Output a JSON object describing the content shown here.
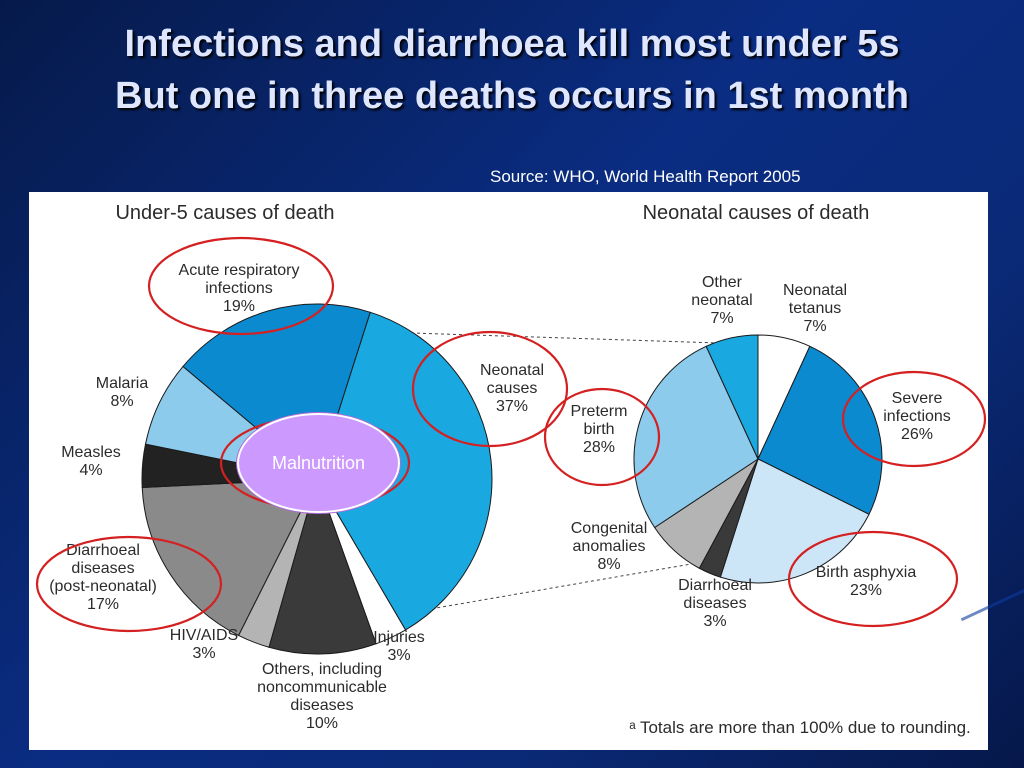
{
  "slide": {
    "title_line1": "Infections and diarrhoea kill most under 5s",
    "title_line2": "But one in three deaths occurs in 1st month",
    "source": "Source: WHO, World Health Report 2005",
    "malnutrition_label": "Malnutrition",
    "footnote": "ᵃ Totals are more than 100% due to rounding.",
    "colors": {
      "highlight_circle": "#d42020",
      "bubble": "#cc99ff",
      "background": "#0a2c82"
    }
  },
  "chart_data": [
    {
      "type": "pie",
      "title": "Under-5 causes of death",
      "slices": [
        {
          "label": "Acute respiratory infections",
          "value": 19,
          "color": "#0b8ad0",
          "lines": [
            "Acute respiratory",
            "infections",
            "19%"
          ]
        },
        {
          "label": "Neonatal causes",
          "value": 37,
          "color": "#1aa8e0",
          "lines": [
            "Neonatal",
            "causes",
            "37%"
          ]
        },
        {
          "label": "Injuries",
          "value": 3,
          "color": "#ffffff",
          "lines": [
            "Injuries",
            "3%"
          ]
        },
        {
          "label": "Others, including noncommunicable diseases",
          "value": 10,
          "color": "#3a3a3a",
          "lines": [
            "Others, including",
            "noncommunicable",
            "diseases",
            "10%"
          ]
        },
        {
          "label": "HIV/AIDS",
          "value": 3,
          "color": "#b4b4b4",
          "lines": [
            "HIV/AIDS",
            "3%"
          ]
        },
        {
          "label": "Diarrhoeal diseases (post-neonatal)",
          "value": 17,
          "color": "#8a8a8a",
          "lines": [
            "Diarrhoeal",
            "diseases",
            "(post-neonatal)",
            "17%"
          ]
        },
        {
          "label": "Measles",
          "value": 4,
          "color": "#222222",
          "lines": [
            "Measles",
            "4%"
          ]
        },
        {
          "label": "Malaria",
          "value": 8,
          "color": "#8ccbec",
          "lines": [
            "Malaria",
            "8%"
          ]
        }
      ]
    },
    {
      "type": "pie",
      "title": "Neonatal causes of death",
      "slices": [
        {
          "label": "Neonatal tetanus",
          "value": 7,
          "color": "#ffffff",
          "lines": [
            "Neonatal",
            "tetanus",
            "7%"
          ]
        },
        {
          "label": "Severe infections",
          "value": 26,
          "color": "#0b8ad0",
          "lines": [
            "Severe",
            "infections",
            "26%"
          ]
        },
        {
          "label": "Birth asphyxia",
          "value": 23,
          "color": "#cce6f8",
          "lines": [
            "Birth asphyxia",
            "23%"
          ]
        },
        {
          "label": "Diarrhoeal diseases",
          "value": 3,
          "color": "#3a3a3a",
          "lines": [
            "Diarrhoeal",
            "diseases",
            "3%"
          ]
        },
        {
          "label": "Congenital anomalies",
          "value": 8,
          "color": "#b4b4b4",
          "lines": [
            "Congenital",
            "anomalies",
            "8%"
          ]
        },
        {
          "label": "Preterm birth",
          "value": 28,
          "color": "#8ccbec",
          "lines": [
            "Preterm",
            "birth",
            "28%"
          ]
        },
        {
          "label": "Other neonatal",
          "value": 7,
          "color": "#1aa8e0",
          "lines": [
            "Other",
            "neonatal",
            "7%"
          ]
        }
      ]
    }
  ]
}
